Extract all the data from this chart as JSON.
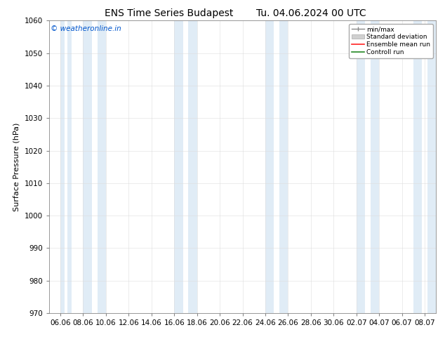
{
  "title_left": "ENS Time Series Budapest",
  "title_right": "Tu. 04.06.2024 00 UTC",
  "ylabel": "Surface Pressure (hPa)",
  "ylim": [
    970,
    1060
  ],
  "yticks": [
    970,
    980,
    990,
    1000,
    1010,
    1020,
    1030,
    1040,
    1050,
    1060
  ],
  "xlabels": [
    "06.06",
    "08.06",
    "10.06",
    "12.06",
    "14.06",
    "16.06",
    "18.06",
    "20.06",
    "22.06",
    "24.06",
    "26.06",
    "28.06",
    "30.06",
    "02.07",
    "04.07",
    "06.07",
    "08.07"
  ],
  "shade_band_color": "#cce0f0",
  "shade_band_alpha": 0.6,
  "watermark": "© weatheronline.in",
  "watermark_color": "#0055cc",
  "legend_labels": [
    "min/max",
    "Standard deviation",
    "Ensemble mean run",
    "Controll run"
  ],
  "background_color": "#ffffff",
  "title_fontsize": 10,
  "axis_fontsize": 8,
  "tick_fontsize": 7.5
}
